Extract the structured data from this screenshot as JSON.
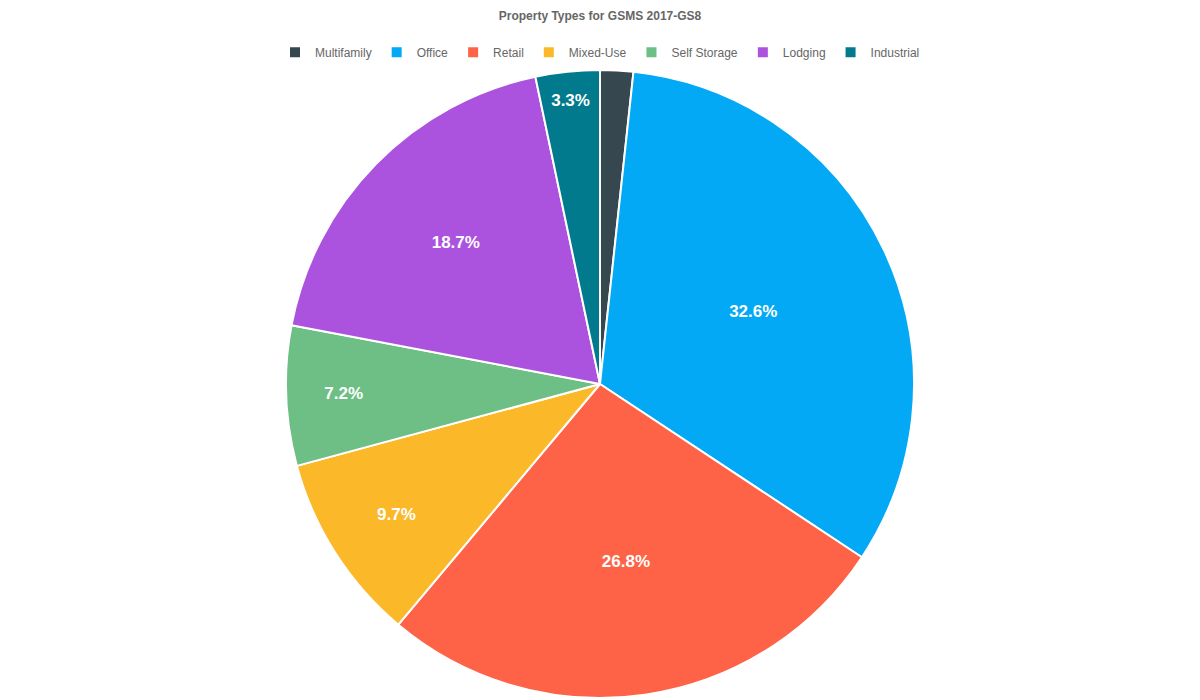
{
  "chart_data": {
    "type": "pie",
    "title": "Property Types for GSMS 2017-GS8",
    "categories": [
      "Multifamily",
      "Office",
      "Retail",
      "Mixed-Use",
      "Self Storage",
      "Lodging",
      "Industrial"
    ],
    "values": [
      1.7,
      32.6,
      26.8,
      9.7,
      7.2,
      18.7,
      3.3
    ],
    "value_labels": [
      null,
      "32.6%",
      "26.8%",
      "9.7%",
      "7.2%",
      "18.7%",
      "3.3%"
    ],
    "colors": [
      "#37474f",
      "#03a9f4",
      "#fe6347",
      "#fbb829",
      "#6dbf86",
      "#ab53de",
      "#007a8c"
    ],
    "data_labels": true,
    "legend": "top"
  }
}
